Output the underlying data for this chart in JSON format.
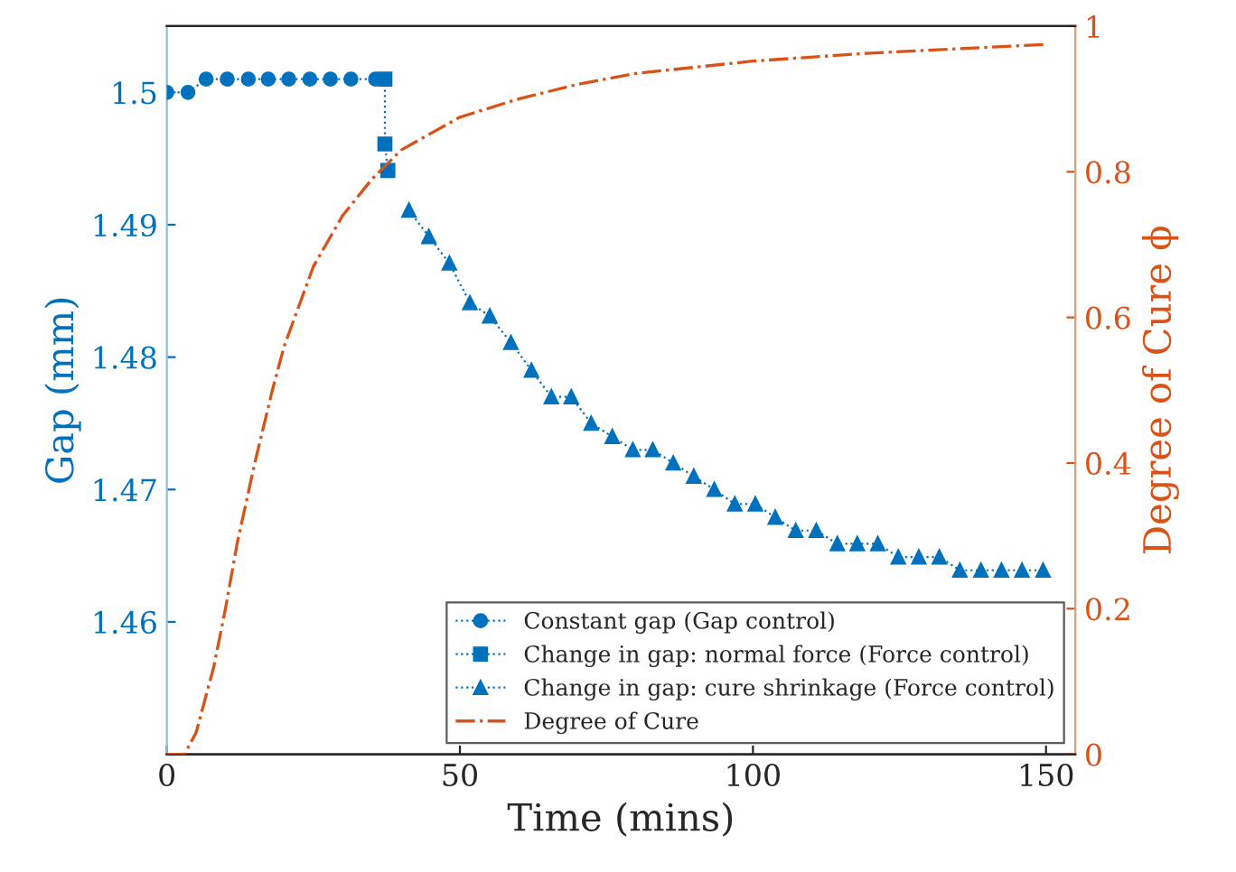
{
  "chart_data": {
    "type": "line",
    "xlabel": "Time (mins)",
    "ylabel": "Gap (mm)",
    "y2label": "Degree of Cure ϕ",
    "xlim": [
      0,
      155
    ],
    "xticks": [
      0,
      50,
      100,
      150
    ],
    "ylim": [
      1.45,
      1.505
    ],
    "yticks": [
      1.46,
      1.47,
      1.48,
      1.49,
      {
        "value": 1.5,
        "label": "1.5"
      }
    ],
    "y2lim": [
      0,
      1
    ],
    "y2ticks": [
      0,
      0.2,
      0.4,
      0.6,
      0.8,
      1
    ],
    "legend": "bottom right",
    "grid": false,
    "series": [
      {
        "name": "Constant gap (Gap control)",
        "color": "#0072bd",
        "marker": "circle",
        "line_style": "dotted",
        "x": [
          0,
          3.6,
          6.7,
          10.3,
          13.9,
          17.3,
          20.8,
          24.4,
          27.9,
          31.4,
          35.6
        ],
        "values": [
          1.5,
          1.5,
          1.501,
          1.501,
          1.501,
          1.501,
          1.501,
          1.501,
          1.501,
          1.501,
          1.501
        ]
      },
      {
        "name": "Change in gap: normal force (Force control)",
        "color": "#0072bd",
        "marker": "square",
        "line_style": "dotted",
        "x": [
          37.2,
          37.2,
          37.7
        ],
        "values": [
          1.501,
          1.4961,
          1.4941
        ]
      },
      {
        "name": "Change in gap: cure shrinkage (Force control)",
        "color": "#0072bd",
        "marker": "triangle",
        "line_style": "dotted",
        "x": [
          41.3,
          44.7,
          48.2,
          51.7,
          55.1,
          58.7,
          62.2,
          65.6,
          69.0,
          72.4,
          76.0,
          79.5,
          82.9,
          86.4,
          89.9,
          93.4,
          96.9,
          100.4,
          103.8,
          107.3,
          110.8,
          114.4,
          117.8,
          121.3,
          124.8,
          128.3,
          131.8,
          135.3,
          138.9,
          142.4,
          145.9,
          149.5
        ],
        "values": [
          1.4911,
          1.4891,
          1.4871,
          1.4841,
          1.4831,
          1.4811,
          1.479,
          1.477,
          1.477,
          1.475,
          1.474,
          1.473,
          1.473,
          1.472,
          1.471,
          1.47,
          1.4689,
          1.4689,
          1.4679,
          1.4669,
          1.4669,
          1.4659,
          1.4659,
          1.4659,
          1.4649,
          1.4649,
          1.4649,
          1.4639,
          1.4639,
          1.4639,
          1.4639,
          1.4639
        ]
      },
      {
        "name": "Degree of Cure",
        "color": "#d95319",
        "axis": "y2",
        "marker": "none",
        "line_style": "dashdot",
        "x": [
          0,
          3,
          5,
          8,
          10,
          12,
          15,
          18,
          20,
          25,
          30,
          35,
          40,
          50,
          60,
          70,
          80,
          100,
          120,
          150
        ],
        "values": [
          0,
          0,
          0.03,
          0.12,
          0.2,
          0.29,
          0.4,
          0.5,
          0.56,
          0.67,
          0.74,
          0.79,
          0.83,
          0.875,
          0.9,
          0.92,
          0.935,
          0.952,
          0.963,
          0.975
        ]
      }
    ]
  }
}
